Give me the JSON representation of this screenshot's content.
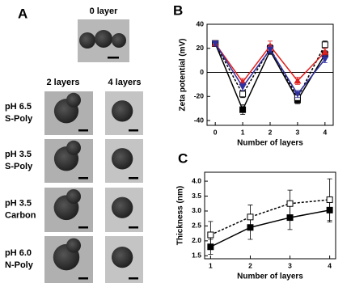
{
  "panel_a": {
    "letter": "A",
    "top_label": "0 layer",
    "col_labels": [
      "2 layers",
      "4 layers"
    ],
    "rows": [
      {
        "line1": "pH 6.5",
        "line2": "S-Poly"
      },
      {
        "line1": "pH 3.5",
        "line2": "S-Poly"
      },
      {
        "line1": "pH 3.5",
        "line2": "Carbon"
      },
      {
        "line1": "pH 6.0",
        "line2": "N-Poly"
      }
    ]
  },
  "chart_data": [
    {
      "type": "line",
      "letter": "B",
      "xlabel": "Number of layers",
      "ylabel": "Zeta potential (mV)",
      "x": [
        0,
        1,
        2,
        3,
        4
      ],
      "xlim": [
        -0.3,
        4.3
      ],
      "xticks": [
        0,
        1,
        2,
        3,
        4
      ],
      "ylim": [
        -44,
        40
      ],
      "yticks": [
        -40,
        -20,
        0,
        20,
        40
      ],
      "zero_line": true,
      "series": [
        {
          "color": "#000000",
          "marker": "square",
          "dashed": false,
          "values": [
            24,
            -31,
            18,
            -23,
            15
          ],
          "errors": [
            2,
            4,
            3,
            3,
            3
          ]
        },
        {
          "color": "#000000",
          "marker": "open-square",
          "dashed": true,
          "values": [
            24,
            -18,
            20,
            -21,
            23
          ],
          "errors": [
            2,
            3,
            3,
            3,
            3
          ]
        },
        {
          "color": "#e02020",
          "marker": "triangle",
          "dashed": false,
          "values": [
            24,
            -8,
            22,
            -7,
            17
          ],
          "errors": [
            2,
            3,
            4,
            3,
            3
          ]
        },
        {
          "color": "#3030a0",
          "marker": "triangle-down",
          "dashed": false,
          "values": [
            24,
            -12,
            19,
            -18,
            11
          ],
          "errors": [
            2,
            3,
            3,
            3,
            3
          ]
        }
      ]
    },
    {
      "type": "line",
      "letter": "C",
      "xlabel": "Number of layers",
      "ylabel": "Thickness (nm)",
      "x": [
        1,
        2,
        3,
        4
      ],
      "xlim": [
        0.85,
        4.15
      ],
      "xticks": [
        1,
        2,
        3,
        4
      ],
      "ylim": [
        1.4,
        4.3
      ],
      "yticks": [
        1.5,
        {
          "value": 2,
          "label": "2.0"
        },
        2.5,
        {
          "value": 3,
          "label": "3.0"
        },
        3.5,
        {
          "value": 4,
          "label": "4.0"
        }
      ],
      "zero_line": false,
      "series": [
        {
          "color": "#000000",
          "marker": "square",
          "dashed": false,
          "values": [
            1.8,
            2.45,
            2.78,
            3.03
          ],
          "errors": [
            0.25,
            0.4,
            0.4,
            0.4
          ]
        },
        {
          "color": "#000000",
          "marker": "open-square",
          "dashed": true,
          "values": [
            2.2,
            2.8,
            3.25,
            3.38
          ],
          "errors": [
            0.45,
            0.4,
            0.45,
            0.7
          ]
        }
      ]
    }
  ]
}
